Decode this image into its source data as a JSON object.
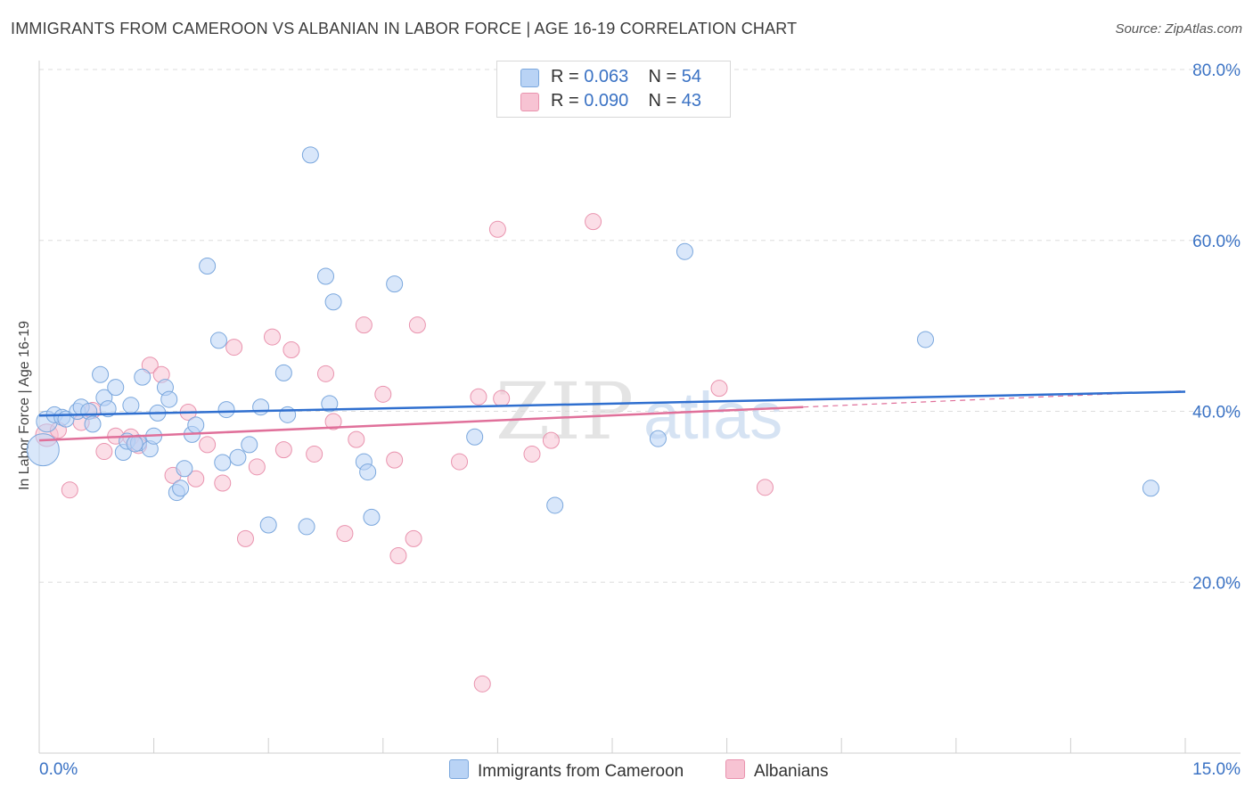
{
  "title": "IMMIGRANTS FROM CAMEROON VS ALBANIAN IN LABOR FORCE | AGE 16-19 CORRELATION CHART",
  "source": "Source: ZipAtlas.com",
  "watermark": {
    "zip": "ZIP",
    "atlas": "atlas"
  },
  "colors": {
    "blue_fill": "#b9d3f5",
    "blue_stroke": "#7aa7dd",
    "blue_line": "#2f6fcf",
    "pink_fill": "#f7c3d3",
    "pink_stroke": "#e993ae",
    "pink_line": "#e0709a",
    "axis_text": "#3a72c4",
    "grid": "#dddddd"
  },
  "legend": {
    "rows": [
      {
        "r_label": "R =",
        "r_value": "0.063",
        "n_label": "N =",
        "n_value": "54"
      },
      {
        "r_label": "R =",
        "r_value": "0.090",
        "n_label": "N =",
        "n_value": "43"
      }
    ]
  },
  "bottom_legend": {
    "series1": "Immigrants from Cameroon",
    "series2": "Albanians"
  },
  "chart_data": {
    "type": "scatter",
    "title": "IMMIGRANTS FROM CAMEROON VS ALBANIAN IN LABOR FORCE | AGE 16-19 CORRELATION CHART",
    "xlabel": "",
    "ylabel": "In Labor Force | Age 16-19",
    "xlim": [
      0,
      15
    ],
    "ylim": [
      0,
      80
    ],
    "x_tick_labels": [
      "0.0%",
      "15.0%"
    ],
    "y_ticks": [
      20,
      40,
      60,
      80
    ],
    "y_tick_labels": [
      "20.0%",
      "40.0%",
      "60.0%",
      "80.0%"
    ],
    "grid": true,
    "series": [
      {
        "name": "Immigrants from Cameroon",
        "color": "#b9d3f5",
        "trend": {
          "x": [
            0,
            15
          ],
          "y": [
            39.5,
            42.3
          ],
          "style": "solid"
        },
        "points": [
          [
            0.05,
            35.5,
            2.0
          ],
          [
            0.1,
            38.8,
            1.3
          ],
          [
            0.2,
            39.6,
            1
          ],
          [
            0.3,
            39.3,
            1
          ],
          [
            0.35,
            39.1,
            1
          ],
          [
            0.5,
            40.0,
            1
          ],
          [
            0.55,
            40.5,
            1
          ],
          [
            0.65,
            40.0,
            1
          ],
          [
            0.7,
            38.5,
            1
          ],
          [
            0.8,
            44.3,
            1
          ],
          [
            0.85,
            41.6,
            1
          ],
          [
            0.9,
            40.3,
            1
          ],
          [
            1.0,
            42.8,
            1
          ],
          [
            1.1,
            35.2,
            1
          ],
          [
            1.15,
            36.5,
            1
          ],
          [
            1.2,
            40.7,
            1
          ],
          [
            1.3,
            36.3,
            1
          ],
          [
            1.35,
            44.0,
            1
          ],
          [
            1.45,
            35.6,
            1
          ],
          [
            1.5,
            37.1,
            1
          ],
          [
            1.55,
            39.8,
            1
          ],
          [
            1.65,
            42.8,
            1
          ],
          [
            1.7,
            41.4,
            1
          ],
          [
            1.8,
            30.5,
            1
          ],
          [
            1.85,
            31.0,
            1
          ],
          [
            1.9,
            33.3,
            1
          ],
          [
            2.0,
            37.3,
            1
          ],
          [
            2.05,
            38.4,
            1
          ],
          [
            2.2,
            57.0,
            1
          ],
          [
            2.35,
            48.3,
            1
          ],
          [
            2.4,
            34.0,
            1
          ],
          [
            2.45,
            40.2,
            1
          ],
          [
            2.6,
            34.6,
            1
          ],
          [
            2.75,
            36.1,
            1
          ],
          [
            2.9,
            40.5,
            1
          ],
          [
            3.0,
            26.7,
            1
          ],
          [
            3.2,
            44.5,
            1
          ],
          [
            3.25,
            39.6,
            1
          ],
          [
            3.5,
            26.5,
            1
          ],
          [
            3.55,
            70.0,
            1
          ],
          [
            3.75,
            55.8,
            1
          ],
          [
            3.8,
            40.9,
            1
          ],
          [
            3.85,
            52.8,
            1
          ],
          [
            4.25,
            34.1,
            1
          ],
          [
            4.3,
            32.9,
            1
          ],
          [
            4.35,
            27.6,
            1
          ],
          [
            4.65,
            54.9,
            1
          ],
          [
            5.7,
            37.0,
            1
          ],
          [
            6.75,
            29.0,
            1
          ],
          [
            8.1,
            36.8,
            1
          ],
          [
            8.45,
            58.7,
            1
          ],
          [
            11.6,
            48.4,
            1
          ],
          [
            14.55,
            31.0,
            1
          ],
          [
            1.25,
            36.2,
            1
          ]
        ]
      },
      {
        "name": "Albanians",
        "color": "#f7c3d3",
        "trend": {
          "x": [
            0,
            10.0
          ],
          "y": [
            36.6,
            40.5
          ],
          "style": "solid",
          "dashed_to": {
            "x": 15,
            "y": 42.4
          }
        },
        "points": [
          [
            0.1,
            37.2,
            1.4
          ],
          [
            0.25,
            37.8,
            1
          ],
          [
            0.4,
            30.8,
            1
          ],
          [
            0.55,
            38.7,
            1
          ],
          [
            0.7,
            40.1,
            1
          ],
          [
            0.85,
            35.3,
            1
          ],
          [
            1.0,
            37.1,
            1
          ],
          [
            1.2,
            37.0,
            1
          ],
          [
            1.3,
            36.0,
            1
          ],
          [
            1.45,
            45.4,
            1
          ],
          [
            1.6,
            44.3,
            1
          ],
          [
            1.75,
            32.5,
            1
          ],
          [
            1.95,
            39.9,
            1
          ],
          [
            2.05,
            32.1,
            1
          ],
          [
            2.2,
            36.1,
            1
          ],
          [
            2.4,
            31.6,
            1
          ],
          [
            2.55,
            47.5,
            1
          ],
          [
            2.7,
            25.1,
            1
          ],
          [
            2.85,
            33.5,
            1
          ],
          [
            3.05,
            48.7,
            1
          ],
          [
            3.2,
            35.5,
            1
          ],
          [
            3.3,
            47.2,
            1
          ],
          [
            3.6,
            35.0,
            1
          ],
          [
            3.75,
            44.4,
            1
          ],
          [
            3.85,
            38.8,
            1
          ],
          [
            4.0,
            25.7,
            1
          ],
          [
            4.15,
            36.7,
            1
          ],
          [
            4.25,
            50.1,
            1
          ],
          [
            4.5,
            42.0,
            1
          ],
          [
            4.65,
            34.3,
            1
          ],
          [
            4.7,
            23.1,
            1
          ],
          [
            4.9,
            25.1,
            1
          ],
          [
            4.95,
            50.1,
            1
          ],
          [
            5.5,
            34.1,
            1
          ],
          [
            5.8,
            8.1,
            1
          ],
          [
            5.75,
            41.7,
            1
          ],
          [
            6.0,
            61.3,
            1
          ],
          [
            6.05,
            41.5,
            1
          ],
          [
            6.45,
            35.0,
            1
          ],
          [
            6.7,
            36.6,
            1
          ],
          [
            7.25,
            62.2,
            1
          ],
          [
            8.9,
            42.7,
            1
          ],
          [
            9.5,
            31.1,
            1
          ]
        ]
      }
    ]
  }
}
